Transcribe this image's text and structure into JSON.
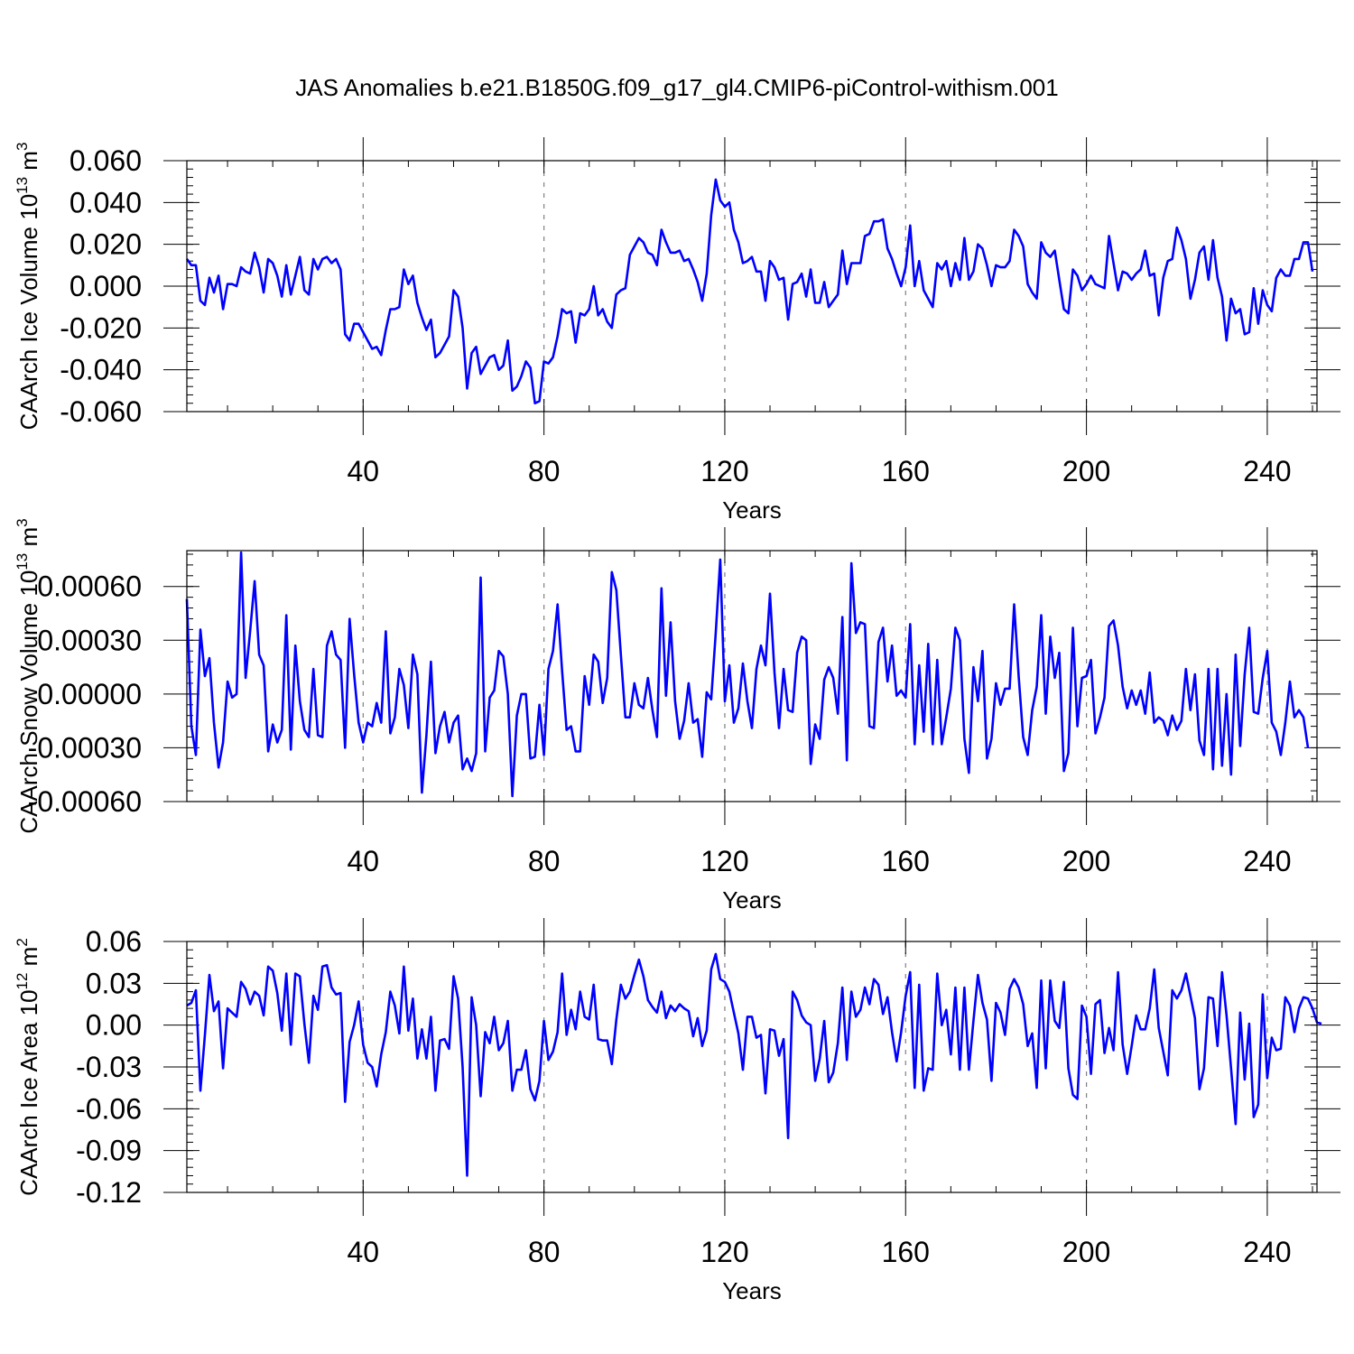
{
  "title": "JAS Anomalies b.e21.B1850G.f09_g17_gl4.CMIP6-piControl-withism.001",
  "colors": {
    "series": "#0000ff",
    "grid": "#808080",
    "axis": "#000000"
  },
  "chart_data": [
    {
      "type": "line",
      "xlabel": "Years",
      "ylabel": "CAArch Ice Volume 10",
      "ylabel_exp": "13",
      "ylabel_unit": " m",
      "ylabel_unit_exp": "3",
      "xlim": [
        1,
        251
      ],
      "ylim": [
        -0.06,
        0.06
      ],
      "xticks": [
        40,
        80,
        120,
        160,
        200,
        240
      ],
      "xtick_labels": [
        "40",
        "80",
        "120",
        "160",
        "200",
        "240"
      ],
      "yticks": [
        -0.06,
        -0.04,
        -0.02,
        0.0,
        0.02,
        0.04,
        0.06
      ],
      "ytick_labels": [
        "-0.060",
        "-0.040",
        "-0.020",
        "0.000",
        "0.020",
        "0.040",
        "0.060"
      ],
      "grid": "vertical dashed at major x ticks",
      "series": [
        {
          "x_start": 1,
          "values": [
            0.013,
            0.01,
            0.01,
            -0.007,
            -0.009,
            0.004,
            -0.003,
            0.005,
            -0.011,
            0.001,
            0.001,
            0.0,
            0.009,
            0.007,
            0.006,
            0.016,
            0.009,
            -0.003,
            0.013,
            0.011,
            0.005,
            -0.005,
            0.01,
            -0.004,
            0.005,
            0.014,
            -0.002,
            -0.004,
            0.013,
            0.008,
            0.013,
            0.014,
            0.011,
            0.013,
            0.008,
            -0.023,
            -0.026,
            -0.018,
            -0.018,
            -0.022,
            -0.026,
            -0.03,
            -0.029,
            -0.033,
            -0.021,
            -0.011,
            -0.011,
            -0.01,
            0.008,
            0.001,
            0.005,
            -0.008,
            -0.015,
            -0.021,
            -0.016,
            -0.034,
            -0.032,
            -0.028,
            -0.024,
            -0.002,
            -0.005,
            -0.02,
            -0.049,
            -0.032,
            -0.029,
            -0.042,
            -0.038,
            -0.034,
            -0.033,
            -0.04,
            -0.038,
            -0.026,
            -0.05,
            -0.048,
            -0.043,
            -0.036,
            -0.039,
            -0.056,
            -0.055,
            -0.036,
            -0.037,
            -0.034,
            -0.024,
            -0.011,
            -0.013,
            -0.012,
            -0.027,
            -0.013,
            -0.014,
            -0.011,
            0.0,
            -0.014,
            -0.011,
            -0.017,
            -0.02,
            -0.004,
            -0.002,
            -0.001,
            0.015,
            0.019,
            0.023,
            0.021,
            0.016,
            0.015,
            0.01,
            0.027,
            0.021,
            0.016,
            0.016,
            0.017,
            0.012,
            0.013,
            0.008,
            0.002,
            -0.007,
            0.006,
            0.034,
            0.051,
            0.041,
            0.038,
            0.04,
            0.027,
            0.021,
            0.011,
            0.012,
            0.014,
            0.007,
            0.007,
            -0.007,
            0.012,
            0.009,
            0.003,
            0.004,
            -0.016,
            0.001,
            0.002,
            0.006,
            -0.005,
            0.008,
            -0.008,
            -0.008,
            0.002,
            -0.01,
            -0.007,
            -0.004,
            0.017,
            0.001,
            0.011,
            0.011,
            0.011,
            0.024,
            0.025,
            0.031,
            0.031,
            0.032,
            0.018,
            0.013,
            0.006,
            0.0,
            0.009,
            0.029,
            0.0,
            0.012,
            -0.002,
            -0.006,
            -0.01,
            0.011,
            0.008,
            0.012,
            0.0,
            0.011,
            0.003,
            0.023,
            0.003,
            0.007,
            0.02,
            0.018,
            0.01,
            0.0,
            0.01,
            0.009,
            0.009,
            0.012,
            0.027,
            0.024,
            0.019,
            0.001,
            -0.003,
            -0.006,
            0.021,
            0.016,
            0.014,
            0.017,
            0.003,
            -0.011,
            -0.013,
            0.008,
            0.005,
            -0.002,
            0.001,
            0.005,
            0.001,
            0.0,
            -0.001,
            0.024,
            0.011,
            -0.002,
            0.007,
            0.006,
            0.003,
            0.006,
            0.008,
            0.017,
            0.005,
            0.006,
            -0.014,
            0.004,
            0.012,
            0.013,
            0.028,
            0.022,
            0.013,
            -0.006,
            0.003,
            0.016,
            0.019,
            0.003,
            0.022,
            0.004,
            -0.005,
            -0.026,
            -0.006,
            -0.013,
            -0.011,
            -0.023,
            -0.022,
            -0.001,
            -0.018,
            -0.002,
            -0.009,
            -0.012,
            0.004,
            0.008,
            0.005,
            0.005,
            0.013,
            0.013,
            0.021,
            0.021,
            0.007
          ]
        }
      ]
    },
    {
      "type": "line",
      "xlabel": "Years",
      "ylabel": "CAArch Snow Volume 10",
      "ylabel_exp": "13",
      "ylabel_unit": " m",
      "ylabel_unit_exp": "3",
      "xlim": [
        1,
        251
      ],
      "ylim": [
        -0.0006,
        0.0008
      ],
      "xticks": [
        40,
        80,
        120,
        160,
        200,
        240
      ],
      "xtick_labels": [
        "40",
        "80",
        "120",
        "160",
        "200",
        "240"
      ],
      "yticks": [
        -0.0006,
        -0.0003,
        0.0,
        0.0003,
        0.0006
      ],
      "ytick_labels": [
        "-0.00060",
        "-0.00030",
        "0.00000",
        "0.00030",
        "0.00060"
      ],
      "grid": "vertical dashed at major x ticks",
      "series": [
        {
          "x_start": 1,
          "values": [
            0.00053,
            -0.00018,
            -0.00034,
            0.00036,
            0.0001,
            0.0002,
            -0.00016,
            -0.00041,
            -0.00027,
            7e-05,
            -2e-05,
            0.0,
            0.00079,
            9e-05,
            0.00035,
            0.00063,
            0.00022,
            0.00016,
            -0.00032,
            -0.00017,
            -0.00027,
            -0.0002,
            0.00044,
            -0.00031,
            0.00027,
            -4e-05,
            -0.0002,
            -0.00024,
            0.00014,
            -0.00023,
            -0.00024,
            0.00027,
            0.00035,
            0.00022,
            0.00019,
            -0.0003,
            0.00042,
            0.00011,
            -0.00016,
            -0.00027,
            -0.00016,
            -0.00018,
            -5e-05,
            -0.00016,
            0.00035,
            -0.00022,
            -0.00013,
            0.00014,
            5e-05,
            -0.00019,
            0.00022,
            0.00011,
            -0.00055,
            -0.00023,
            0.00018,
            -0.00033,
            -0.00018,
            -0.0001,
            -0.00027,
            -0.00016,
            -0.00012,
            -0.00042,
            -0.00036,
            -0.00043,
            -0.00033,
            0.00065,
            -0.00032,
            -2e-05,
            2e-05,
            0.00024,
            0.00021,
            0.0,
            -0.00057,
            -0.00012,
            0.0,
            0.0,
            -0.00036,
            -0.00035,
            -6e-05,
            -0.00034,
            0.00014,
            0.00024,
            0.0005,
            0.00013,
            -0.0002,
            -0.00018,
            -0.00032,
            -0.00032,
            0.0001,
            -6e-05,
            0.00022,
            0.00018,
            -5e-05,
            9e-05,
            0.00068,
            0.00058,
            0.00022,
            -0.00013,
            -0.00013,
            6e-05,
            -6e-05,
            -8e-05,
            9e-05,
            -9e-05,
            -0.00024,
            0.00059,
            -1e-05,
            0.0004,
            -4e-05,
            -0.00025,
            -0.00015,
            6e-05,
            -0.00016,
            -0.00014,
            -0.00035,
            1e-05,
            -3e-05,
            0.00034,
            0.00075,
            -4e-05,
            0.00016,
            -0.00016,
            -8e-05,
            0.00017,
            -4e-05,
            -0.00019,
            0.00014,
            0.00027,
            0.00016,
            0.00056,
            0.00012,
            -0.00019,
            0.00014,
            -9e-05,
            -0.0001,
            0.00023,
            0.00032,
            0.0003,
            -0.00039,
            -0.00017,
            -0.00025,
            8e-05,
            0.00015,
            9e-05,
            -0.00011,
            0.00043,
            -0.00037,
            0.00073,
            0.00034,
            0.0004,
            0.00039,
            -0.00018,
            -0.00019,
            0.00029,
            0.00037,
            7e-05,
            0.00027,
            -1e-05,
            2e-05,
            -2e-05,
            0.00039,
            -0.00028,
            0.00016,
            -0.00021,
            0.00028,
            -0.00028,
            0.00019,
            -0.00028,
            -0.00013,
            3e-05,
            0.00037,
            0.0003,
            -0.00025,
            -0.00044,
            0.00015,
            -4e-05,
            0.00024,
            -0.00036,
            -0.00025,
            6e-05,
            -6e-05,
            3e-05,
            3e-05,
            0.0005,
            0.0001,
            -0.00024,
            -0.00034,
            -9e-05,
            4e-05,
            0.00044,
            -0.00011,
            0.00032,
            9e-05,
            0.00023,
            -0.00043,
            -0.00033,
            0.00037,
            -0.00018,
            9e-05,
            0.0001,
            0.00019,
            -0.00022,
            -0.00013,
            -2e-05,
            0.00038,
            0.00041,
            0.00027,
            4e-05,
            -8e-05,
            2e-05,
            -6e-05,
            2e-05,
            -0.00011,
            0.00012,
            -0.00016,
            -0.00013,
            -0.00015,
            -0.00023,
            -0.00012,
            -0.0002,
            -0.00015,
            0.00014,
            -9e-05,
            0.00011,
            -0.00026,
            -0.00034,
            0.00014,
            -0.00042,
            0.00014,
            -0.0004,
            0.0,
            -0.00045,
            0.00022,
            -0.00029,
            0.00011,
            0.00037,
            -0.0001,
            -0.00011,
            9e-05,
            0.00024,
            -0.00016,
            -0.00021,
            -0.00034,
            -0.00016,
            7e-05,
            -0.00013,
            -9e-05,
            -0.00013,
            -0.0003
          ]
        }
      ]
    },
    {
      "type": "line",
      "xlabel": "Years",
      "ylabel": "CAArch Ice Area 10",
      "ylabel_exp": "12",
      "ylabel_unit": " m",
      "ylabel_unit_exp": "2",
      "xlim": [
        1,
        251
      ],
      "ylim": [
        -0.12,
        0.06
      ],
      "xticks": [
        40,
        80,
        120,
        160,
        200,
        240
      ],
      "xtick_labels": [
        "40",
        "80",
        "120",
        "160",
        "200",
        "240"
      ],
      "yticks": [
        -0.12,
        -0.09,
        -0.06,
        -0.03,
        0.0,
        0.03,
        0.06
      ],
      "ytick_labels": [
        "-0.12",
        "-0.09",
        "-0.06",
        "-0.03",
        "0.00",
        "0.03",
        "0.06"
      ],
      "grid": "vertical dashed at major x ticks",
      "series": [
        {
          "x_start": 1,
          "values": [
            0.014,
            0.016,
            0.025,
            -0.047,
            -0.007,
            0.036,
            0.01,
            0.017,
            -0.031,
            0.012,
            0.009,
            0.006,
            0.031,
            0.026,
            0.015,
            0.024,
            0.021,
            0.007,
            0.042,
            0.039,
            0.023,
            -0.004,
            0.037,
            -0.014,
            0.037,
            0.035,
            0.001,
            -0.027,
            0.021,
            0.011,
            0.042,
            0.043,
            0.027,
            0.022,
            0.023,
            -0.055,
            -0.012,
            0.0,
            0.017,
            -0.014,
            -0.027,
            -0.03,
            -0.044,
            -0.021,
            -0.005,
            0.024,
            0.014,
            -0.006,
            0.042,
            -0.004,
            0.019,
            -0.024,
            -0.003,
            -0.024,
            0.006,
            -0.047,
            -0.011,
            -0.01,
            -0.017,
            0.035,
            0.019,
            -0.03,
            -0.108,
            0.02,
            0.0,
            -0.051,
            -0.005,
            -0.013,
            0.006,
            -0.018,
            -0.013,
            0.003,
            -0.047,
            -0.032,
            -0.032,
            -0.018,
            -0.046,
            -0.054,
            -0.04,
            0.003,
            -0.025,
            -0.019,
            -0.005,
            0.037,
            -0.007,
            0.011,
            -0.003,
            0.024,
            0.006,
            0.004,
            0.029,
            -0.01,
            -0.011,
            -0.011,
            -0.028,
            0.004,
            0.029,
            0.019,
            0.024,
            0.036,
            0.047,
            0.035,
            0.018,
            0.013,
            0.009,
            0.024,
            0.005,
            0.014,
            0.01,
            0.015,
            0.012,
            0.01,
            -0.008,
            0.005,
            -0.015,
            -0.004,
            0.04,
            0.051,
            0.033,
            0.031,
            0.024,
            0.009,
            -0.006,
            -0.032,
            0.006,
            0.006,
            -0.009,
            -0.007,
            -0.049,
            -0.003,
            -0.004,
            -0.022,
            -0.01,
            -0.081,
            0.024,
            0.018,
            0.007,
            0.002,
            0.0,
            -0.04,
            -0.024,
            0.003,
            -0.041,
            -0.034,
            -0.013,
            0.027,
            -0.025,
            0.024,
            0.006,
            0.011,
            0.027,
            0.015,
            0.033,
            0.029,
            0.008,
            0.02,
            -0.005,
            -0.026,
            -0.005,
            0.021,
            0.038,
            -0.045,
            0.029,
            -0.047,
            -0.031,
            -0.032,
            0.037,
            0.0,
            0.011,
            -0.021,
            0.027,
            -0.032,
            0.027,
            -0.032,
            0.003,
            0.036,
            0.016,
            0.004,
            -0.04,
            0.016,
            0.009,
            -0.007,
            0.026,
            0.033,
            0.027,
            0.015,
            -0.015,
            -0.006,
            -0.045,
            0.032,
            -0.031,
            0.032,
            0.003,
            -0.002,
            0.031,
            -0.031,
            -0.05,
            -0.053,
            0.014,
            0.006,
            -0.035,
            0.015,
            0.018,
            -0.02,
            -0.002,
            -0.018,
            0.038,
            -0.014,
            -0.035,
            -0.015,
            0.007,
            -0.003,
            -0.003,
            0.012,
            0.04,
            -0.002,
            -0.019,
            -0.036,
            0.025,
            0.019,
            0.025,
            0.037,
            0.021,
            0.005,
            -0.046,
            -0.031,
            0.02,
            0.019,
            -0.015,
            0.038,
            0.007,
            -0.031,
            -0.071,
            0.009,
            -0.039,
            0.001,
            -0.066,
            -0.057,
            0.022,
            -0.038,
            -0.009,
            -0.018,
            -0.017,
            0.02,
            0.014,
            -0.005,
            0.012,
            0.02,
            0.019,
            0.012,
            0.002,
            0.001
          ]
        }
      ]
    }
  ]
}
